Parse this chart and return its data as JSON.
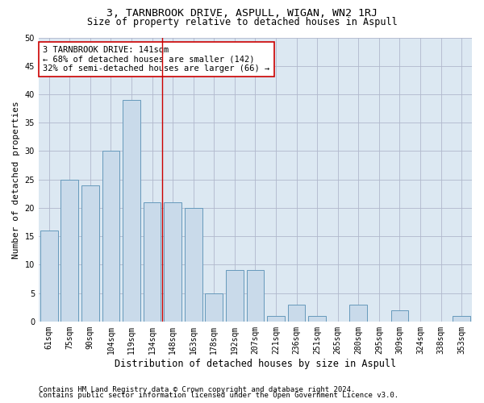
{
  "title": "3, TARNBROOK DRIVE, ASPULL, WIGAN, WN2 1RJ",
  "subtitle": "Size of property relative to detached houses in Aspull",
  "xlabel": "Distribution of detached houses by size in Aspull",
  "ylabel": "Number of detached properties",
  "categories": [
    "61sqm",
    "75sqm",
    "90sqm",
    "104sqm",
    "119sqm",
    "134sqm",
    "148sqm",
    "163sqm",
    "178sqm",
    "192sqm",
    "207sqm",
    "221sqm",
    "236sqm",
    "251sqm",
    "265sqm",
    "280sqm",
    "295sqm",
    "309sqm",
    "324sqm",
    "338sqm",
    "353sqm"
  ],
  "values": [
    16,
    25,
    24,
    30,
    39,
    21,
    21,
    20,
    5,
    9,
    9,
    1,
    3,
    1,
    0,
    3,
    0,
    2,
    0,
    0,
    1
  ],
  "bar_color": "#c9daea",
  "bar_edgecolor": "#6699bb",
  "bar_linewidth": 0.7,
  "grid_color": "#b0b8cc",
  "bg_color": "#dce8f2",
  "property_line_x": 5.5,
  "annotation_text1": "3 TARNBROOK DRIVE: 141sqm",
  "annotation_text2": "← 68% of detached houses are smaller (142)",
  "annotation_text3": "32% of semi-detached houses are larger (66) →",
  "annotation_box_color": "#ffffff",
  "annotation_box_edgecolor": "#cc0000",
  "vline_color": "#cc0000",
  "ylim": [
    0,
    50
  ],
  "yticks": [
    0,
    5,
    10,
    15,
    20,
    25,
    30,
    35,
    40,
    45,
    50
  ],
  "footer1": "Contains HM Land Registry data © Crown copyright and database right 2024.",
  "footer2": "Contains public sector information licensed under the Open Government Licence v3.0.",
  "title_fontsize": 9.5,
  "subtitle_fontsize": 8.5,
  "tick_fontsize": 7,
  "ylabel_fontsize": 8,
  "xlabel_fontsize": 8.5,
  "annotation_fontsize": 7.5,
  "footer_fontsize": 6.5
}
